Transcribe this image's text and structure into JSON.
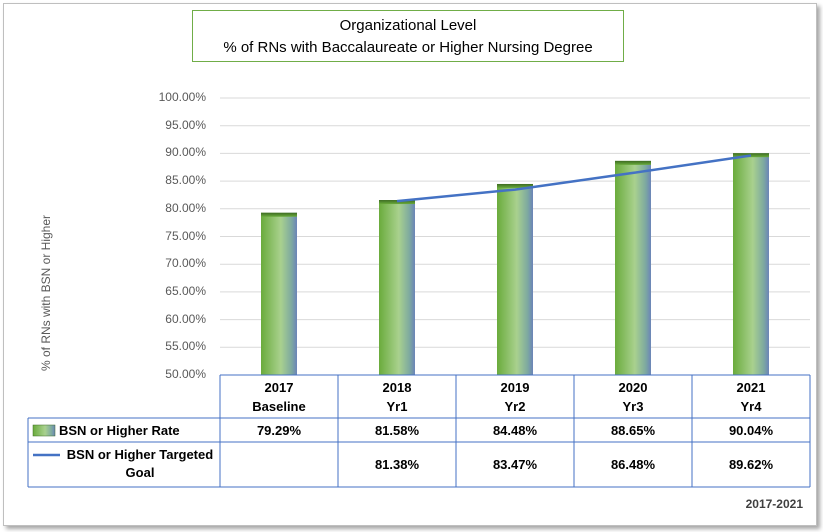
{
  "chart_data": {
    "type": "bar",
    "title_line1": "Organizational Level",
    "title_line2": "% of RNs with Baccalaureate  or Higher Nursing Degree",
    "ylabel": "% of RNs with BSN or Higher",
    "ylim": [
      50,
      100
    ],
    "yticks": [
      "100.00%",
      "95.00%",
      "90.00%",
      "85.00%",
      "80.00%",
      "75.00%",
      "70.00%",
      "65.00%",
      "60.00%",
      "55.00%",
      "50.00%"
    ],
    "categories": [
      {
        "year": "2017",
        "label": "Baseline"
      },
      {
        "year": "2018",
        "label": "Yr1"
      },
      {
        "year": "2019",
        "label": "Yr2"
      },
      {
        "year": "2020",
        "label": "Yr3"
      },
      {
        "year": "2021",
        "label": "Yr4"
      }
    ],
    "series": [
      {
        "name": "BSN or Higher  Rate",
        "type": "bar",
        "color": "#70ad47",
        "values": [
          79.29,
          81.58,
          84.48,
          88.65,
          90.04
        ],
        "display": [
          "79.29%",
          "81.58%",
          "84.48%",
          "88.65%",
          "90.04%"
        ]
      },
      {
        "name": "BSN or Higher Targeted Goal",
        "type": "line",
        "color": "#4472c4",
        "values": [
          null,
          81.38,
          83.47,
          86.48,
          89.62
        ],
        "display": [
          "",
          "81.38%",
          "83.47%",
          "86.48%",
          "89.62%"
        ]
      }
    ],
    "grid": true,
    "legend": "data-table"
  },
  "footer": "2017-2021"
}
